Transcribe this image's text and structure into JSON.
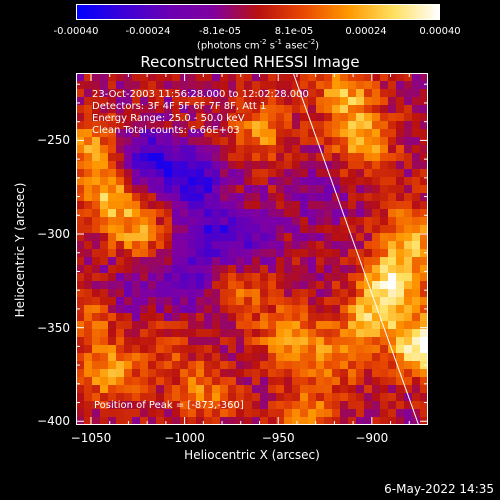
{
  "colorbar": {
    "ticks": [
      "-0.00040",
      "-0.00024",
      "-8.1e-05",
      "8.1e-05",
      "0.00024",
      "0.00040"
    ],
    "unit_parts": [
      "(photons cm",
      "-2",
      " s",
      "-1",
      " asec",
      "-2",
      ")"
    ],
    "colormap": [
      "#0000ff",
      "#3a00d8",
      "#6a00b4",
      "#8000a0",
      "#b81010",
      "#e84800",
      "#ff9800",
      "#ffe060",
      "#ffffff"
    ]
  },
  "chart_data": {
    "type": "heatmap",
    "title": "Reconstructed RHESSI Image",
    "xlabel": "Heliocentric X (arcsec)",
    "ylabel": "Heliocentric Y (arcsec)",
    "xlim": [
      -1058,
      -870
    ],
    "ylim": [
      -402,
      -214
    ],
    "x_ticks": [
      -1050,
      -1000,
      -950,
      -900
    ],
    "x_tick_labels": [
      "−1050",
      "−1000",
      "−950",
      "−900"
    ],
    "y_ticks": [
      -250,
      -300,
      -350,
      -400
    ],
    "y_tick_labels": [
      "−250",
      "−300",
      "−350",
      "−400"
    ],
    "value_range": [
      -0.0004,
      0.0004
    ],
    "grid": false,
    "annotations": [
      "23-Oct-2003 11:56:28.000 to 12:02:28.000",
      "Detectors: 3F 4F 5F 6F 7F 8F, Att 1",
      "Energy Range: 25.0 - 50.0 keV",
      "Clean    Total counts: 6.66E+03"
    ],
    "peak_label": "Position of Peak = [-873,-360]",
    "peak": {
      "x": -873,
      "y": -360,
      "value": 0.0004
    },
    "limb_line": [
      {
        "x": -942,
        "y": -214
      },
      {
        "x": -875,
        "y": -402
      }
    ],
    "sources": [
      {
        "x": -873,
        "y": -360,
        "value": 0.0004
      },
      {
        "x": -888,
        "y": -325,
        "value": 0.00034
      },
      {
        "x": -900,
        "y": -345,
        "value": 0.00024
      },
      {
        "x": -878,
        "y": -300,
        "value": 0.00026
      },
      {
        "x": -905,
        "y": -250,
        "value": 0.00026
      },
      {
        "x": -915,
        "y": -225,
        "value": 0.00024
      },
      {
        "x": -1040,
        "y": -280,
        "value": 0.00026
      },
      {
        "x": -1050,
        "y": -255,
        "value": 0.00022
      },
      {
        "x": -1025,
        "y": -300,
        "value": 0.0002
      },
      {
        "x": -960,
        "y": -245,
        "value": 0.0002
      },
      {
        "x": -970,
        "y": -330,
        "value": 0.00015
      },
      {
        "x": -945,
        "y": -355,
        "value": 0.00022
      },
      {
        "x": -920,
        "y": -365,
        "value": 0.00018
      },
      {
        "x": -990,
        "y": -385,
        "value": 0.00018
      },
      {
        "x": -1040,
        "y": -375,
        "value": 0.00022
      },
      {
        "x": -1050,
        "y": -345,
        "value": 0.00015
      },
      {
        "x": -935,
        "y": -395,
        "value": 0.00018
      },
      {
        "x": -1010,
        "y": -360,
        "value": 0.0001
      },
      {
        "x": -1020,
        "y": -260,
        "value": -0.0003
      },
      {
        "x": -995,
        "y": -270,
        "value": -0.00032
      },
      {
        "x": -985,
        "y": -300,
        "value": -0.00022
      },
      {
        "x": -1000,
        "y": -325,
        "value": -0.0002
      },
      {
        "x": -965,
        "y": -305,
        "value": -0.00015
      },
      {
        "x": -1030,
        "y": -330,
        "value": -0.00012
      },
      {
        "x": -930,
        "y": -280,
        "value": -0.0001
      }
    ]
  },
  "footer": {
    "date": "6-May-2022 14:35"
  }
}
